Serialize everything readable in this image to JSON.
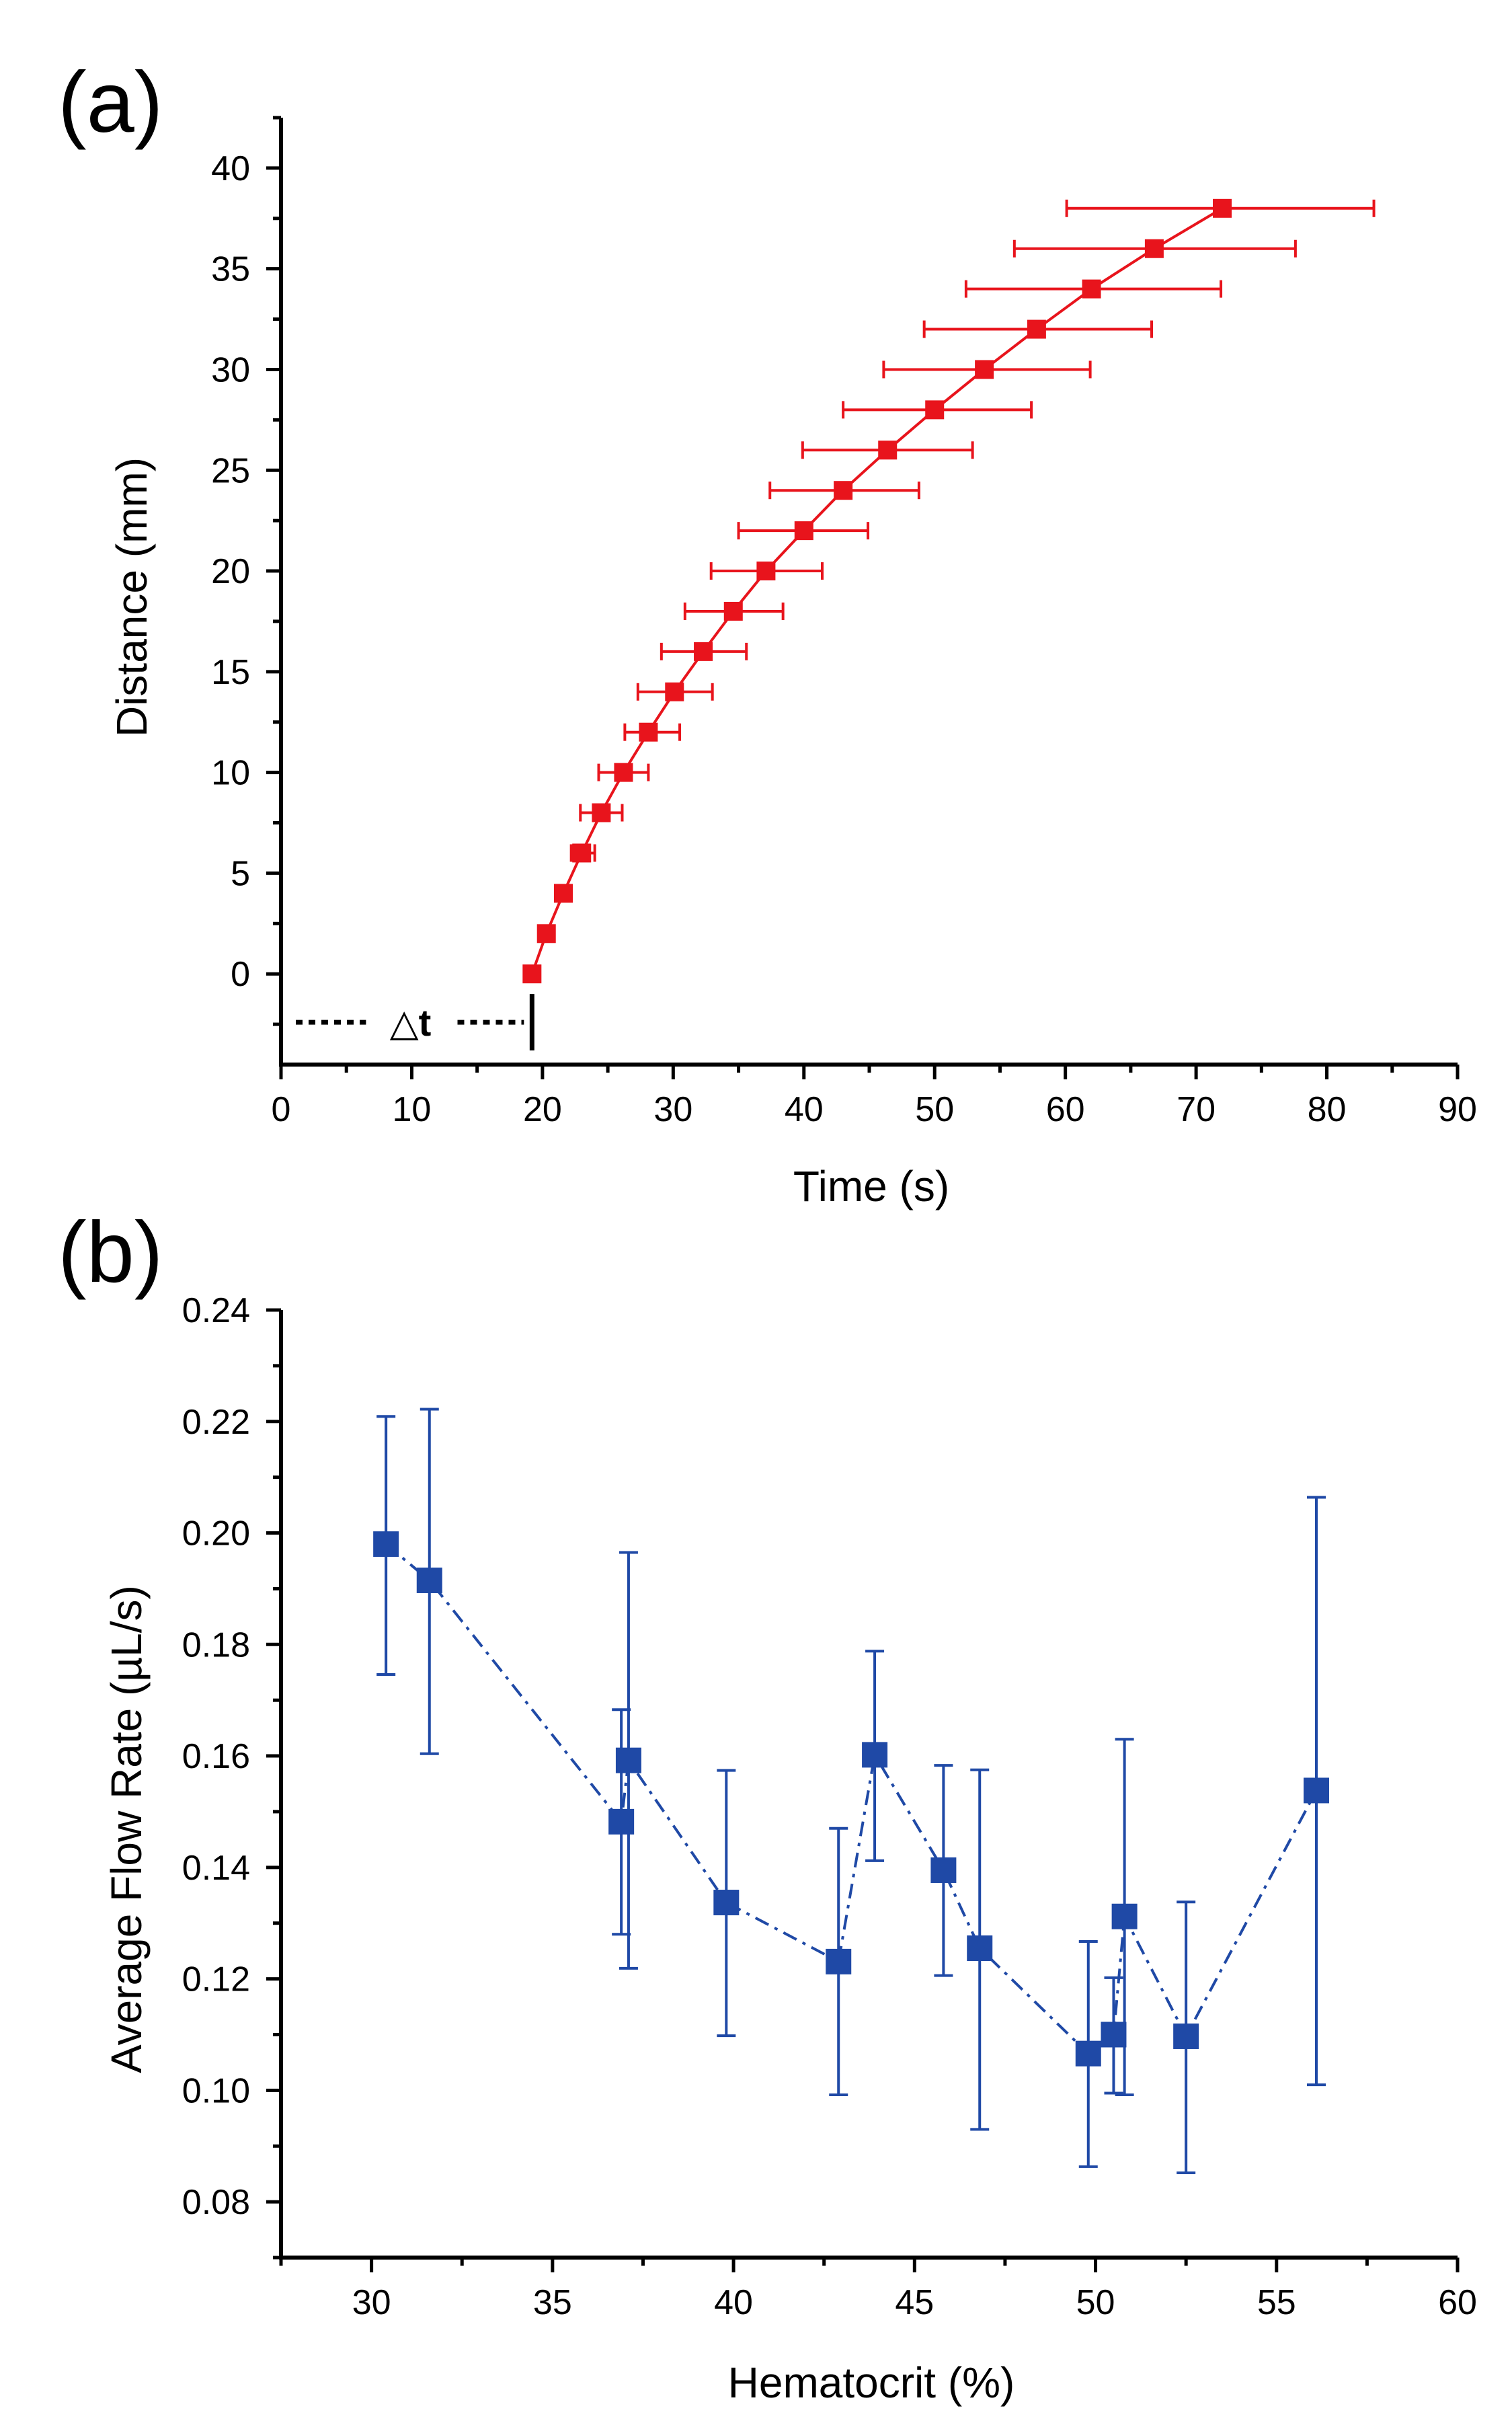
{
  "chart_data": [
    {
      "type": "line",
      "panel_label": "(a)",
      "xlabel": "Time (s)",
      "ylabel": "Distance (mm)",
      "xlim": [
        0,
        90
      ],
      "ylim": [
        -4.5,
        42.5
      ],
      "xticks": [
        0,
        10,
        20,
        30,
        40,
        50,
        60,
        70,
        80,
        90
      ],
      "yticks": [
        0,
        5,
        10,
        15,
        20,
        25,
        30,
        35,
        40
      ],
      "xtick_labels": [
        "0",
        "10",
        "20",
        "30",
        "40",
        "50",
        "60",
        "70",
        "80",
        "90"
      ],
      "ytick_labels": [
        "0",
        "5",
        "10",
        "15",
        "20",
        "25",
        "30",
        "35",
        "40"
      ],
      "grid": false,
      "color": "#e8141c",
      "marker": "square",
      "line_style": "solid",
      "error_bars": "horizontal",
      "annotation": {
        "text": "△t",
        "at_y": -2.4,
        "x_from": 0,
        "x_to": 19.2,
        "marker_y_range": [
          -1.0,
          -3.8
        ]
      },
      "series": [
        {
          "name": "Distance",
          "x": [
            19.2,
            20.3,
            21.6,
            23.0,
            24.5,
            26.2,
            28.1,
            30.1,
            32.3,
            34.6,
            37.1,
            40.0,
            43.0,
            46.4,
            50.0,
            53.8,
            57.8,
            62.0,
            66.8,
            72.0
          ],
          "y": [
            0,
            2,
            4,
            6,
            8,
            10,
            12,
            14,
            16,
            18,
            20,
            22,
            24,
            26,
            28,
            30,
            32,
            34,
            36,
            38
          ],
          "xerr_low": [
            19.2,
            20.3,
            21.6,
            22.2,
            22.9,
            24.3,
            26.3,
            27.3,
            29.1,
            30.9,
            32.9,
            35.0,
            37.4,
            39.9,
            43.0,
            46.1,
            49.2,
            52.4,
            56.1,
            60.1
          ],
          "xerr_high": [
            19.2,
            20.3,
            21.6,
            24.0,
            26.1,
            28.1,
            30.5,
            33.0,
            35.6,
            38.4,
            41.4,
            44.9,
            48.8,
            52.9,
            57.4,
            61.9,
            66.6,
            71.9,
            77.6,
            83.6
          ]
        }
      ]
    },
    {
      "type": "line",
      "panel_label": "(b)",
      "xlabel": "Hematocrit (%)",
      "ylabel": "Average Flow Rate (µL/s)",
      "xlim": [
        27.5,
        60
      ],
      "ylim": [
        0.07,
        0.24
      ],
      "xticks": [
        30,
        35,
        40,
        45,
        50,
        55,
        60
      ],
      "yticks": [
        0.08,
        0.1,
        0.12,
        0.14,
        0.16,
        0.18,
        0.2,
        0.22,
        0.24
      ],
      "xtick_labels": [
        "30",
        "35",
        "40",
        "45",
        "50",
        "55",
        "60"
      ],
      "ytick_labels": [
        "0.08",
        "0.10",
        "0.12",
        "0.14",
        "0.16",
        "0.18",
        "0.20",
        "0.22",
        "0.24"
      ],
      "grid": false,
      "color": "#1f49a6",
      "marker": "square",
      "line_style": "dash-dot",
      "error_bars": "vertical",
      "series": [
        {
          "name": "Average Flow Rate",
          "x": [
            30.4,
            31.6,
            36.9,
            37.1,
            39.8,
            42.9,
            43.9,
            45.8,
            46.8,
            49.8,
            50.5,
            50.8,
            52.5,
            56.1
          ],
          "y": [
            0.198,
            0.1915,
            0.1482,
            0.1592,
            0.1337,
            0.1231,
            0.1602,
            0.1395,
            0.1255,
            0.1066,
            0.11,
            0.1312,
            0.1097,
            0.1538
          ],
          "yerr_low": [
            0.1746,
            0.1604,
            0.128,
            0.1219,
            0.1098,
            0.0992,
            0.1412,
            0.1206,
            0.093,
            0.0863,
            0.0995,
            0.0992,
            0.0852,
            0.101
          ],
          "yerr_high": [
            0.2209,
            0.2222,
            0.1683,
            0.1965,
            0.1574,
            0.147,
            0.1788,
            0.1583,
            0.1575,
            0.1267,
            0.1202,
            0.163,
            0.1338,
            0.2064
          ]
        }
      ]
    }
  ]
}
